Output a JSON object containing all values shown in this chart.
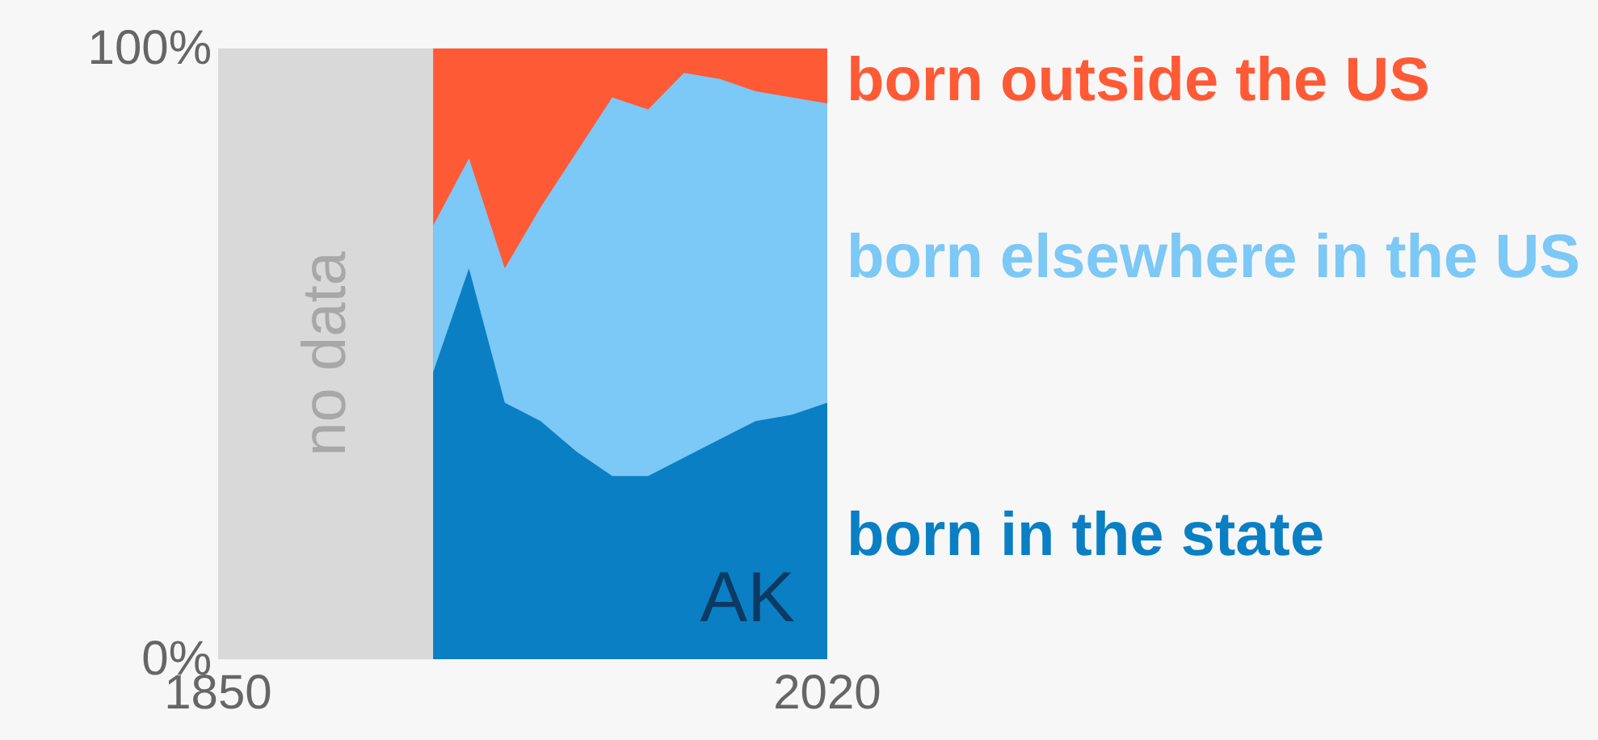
{
  "chart_data": {
    "type": "area",
    "stacked": true,
    "x": [
      1910,
      1920,
      1930,
      1940,
      1950,
      1960,
      1970,
      1980,
      1990,
      2000,
      2010,
      2020
    ],
    "series": [
      {
        "name": "born in the state",
        "color": "#0a7fc4",
        "values": [
          47,
          64,
          42,
          39,
          34,
          30,
          30,
          33,
          36,
          39,
          40,
          42
        ]
      },
      {
        "name": "born elsewhere in the US",
        "color": "#7cc8f6",
        "values": [
          24,
          18,
          22,
          35,
          49,
          62,
          60,
          63,
          59,
          54,
          52,
          49
        ]
      },
      {
        "name": "born outside the US",
        "color": "#ff5a36",
        "values": [
          29,
          18,
          36,
          26,
          17,
          8,
          10,
          4,
          5,
          7,
          8,
          9
        ]
      }
    ],
    "xlim": [
      1850,
      2020
    ],
    "xticks": [
      1850,
      2020
    ],
    "ylim": [
      0,
      100
    ],
    "yticks": [
      {
        "value": 0,
        "label": "0%"
      },
      {
        "value": 100,
        "label": "100%"
      }
    ],
    "bands": [
      {
        "axis": "x",
        "from": 1850,
        "to": 1910,
        "label": "no data",
        "color": "#d9d9d9"
      }
    ],
    "annotations": [
      "AK"
    ],
    "grid": false,
    "legend": false
  }
}
